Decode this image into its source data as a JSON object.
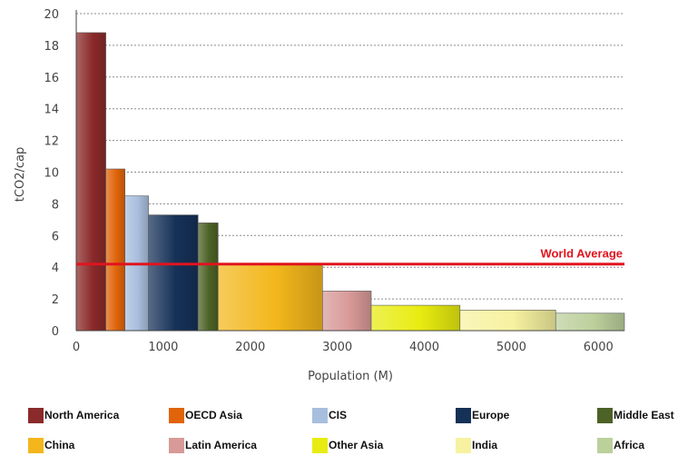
{
  "chart_data": {
    "type": "bar",
    "variant": "variable-width",
    "xlabel": "Population (M)",
    "ylabel": "tCO2/cap",
    "xlim": [
      0,
      6300
    ],
    "ylim": [
      0,
      20
    ],
    "xticks": [
      0,
      1000,
      2000,
      3000,
      4000,
      5000,
      6000
    ],
    "yticks": [
      0,
      2,
      4,
      6,
      8,
      10,
      12,
      14,
      16,
      18,
      20
    ],
    "grid": "horizontal dashed",
    "reference_line": {
      "label": "World Average",
      "value": 4.2,
      "color": "#e0141e"
    },
    "bars": [
      {
        "name": "North America",
        "x_start": 0,
        "x_end": 340,
        "value": 18.8,
        "color": "#8b2a2a"
      },
      {
        "name": "OECD Asia",
        "x_start": 340,
        "x_end": 560,
        "value": 10.2,
        "color": "#e0640a"
      },
      {
        "name": "CIS",
        "x_start": 560,
        "x_end": 830,
        "value": 8.5,
        "color": "#a8bedd"
      },
      {
        "name": "Europe",
        "x_start": 830,
        "x_end": 1400,
        "value": 7.3,
        "color": "#163158"
      },
      {
        "name": "Middle East",
        "x_start": 1400,
        "x_end": 1630,
        "value": 6.8,
        "color": "#4d6226"
      },
      {
        "name": "China",
        "x_start": 1630,
        "x_end": 2830,
        "value": 4.2,
        "color": "#f3b71c"
      },
      {
        "name": "Latin America",
        "x_start": 2830,
        "x_end": 3390,
        "value": 2.5,
        "color": "#d89a98"
      },
      {
        "name": "Other Asia",
        "x_start": 3390,
        "x_end": 4410,
        "value": 1.6,
        "color": "#e8ec10"
      },
      {
        "name": "India",
        "x_start": 4410,
        "x_end": 5510,
        "value": 1.3,
        "color": "#f6f2a0"
      },
      {
        "name": "Africa",
        "x_start": 5510,
        "x_end": 6360,
        "value": 1.1,
        "color": "#bcd09c"
      }
    ],
    "legend_placement": "bottom"
  }
}
